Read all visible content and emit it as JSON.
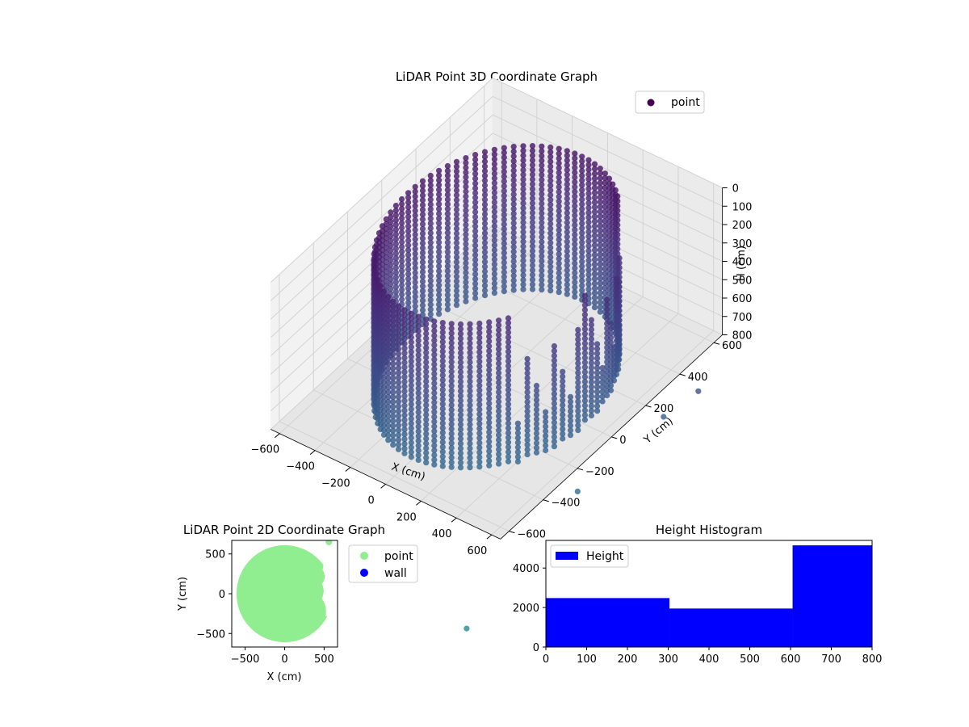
{
  "chart_data": [
    {
      "type": "scatter3d",
      "title": "LiDAR Point 3D Coordinate Graph",
      "xlabel": "X (cm)",
      "ylabel": "Y (cm)",
      "zlabel": "H (cm)",
      "xlim": [
        -650,
        650
      ],
      "ylim": [
        -650,
        650
      ],
      "zlim": [
        800,
        0
      ],
      "xticks": [
        -600,
        -400,
        -200,
        0,
        200,
        400,
        600
      ],
      "yticks": [
        -600,
        -400,
        -200,
        0,
        200,
        400,
        600
      ],
      "zticks": [
        0,
        100,
        200,
        300,
        400,
        500,
        600,
        700,
        800
      ],
      "colormap": "viridis",
      "legend": {
        "position": "top-right",
        "entries": [
          {
            "label": "point",
            "color": "#440154"
          }
        ]
      },
      "grid": true,
      "series": [
        {
          "name": "point",
          "shape": "cylindrical wall of points",
          "radius": 500,
          "height_range": [
            0,
            800
          ],
          "opening_angle_range_deg": [
            -40,
            50
          ],
          "outliers": [
            {
              "x": 900,
              "y": 250,
              "h": 650
            },
            {
              "x": 800,
              "y": 150,
              "h": 750
            },
            {
              "x": 700,
              "y": -250,
              "h": 860
            },
            {
              "x": 700,
              "y": -900,
              "h": 1050
            }
          ]
        }
      ]
    },
    {
      "type": "scatter",
      "title": "LiDAR Point 2D Coordinate Graph",
      "xlabel": "X (cm)",
      "ylabel": "Y (cm)",
      "xlim": [
        -670,
        670
      ],
      "ylim": [
        -670,
        670
      ],
      "xticks": [
        -500,
        0,
        500
      ],
      "yticks": [
        -500,
        0,
        500
      ],
      "legend": {
        "position": "outside-right",
        "entries": [
          {
            "label": "point",
            "color": "#90ee90"
          },
          {
            "label": "wall",
            "color": "#0000ff"
          }
        ]
      },
      "series": [
        {
          "name": "point",
          "color": "#90ee90",
          "shape": "filled disk",
          "radius": 610
        },
        {
          "name": "wall",
          "color": "#0000ff",
          "values": []
        }
      ]
    },
    {
      "type": "bar",
      "title": "Height Histogram",
      "xlim": [
        0,
        800
      ],
      "ylim": [
        0,
        5400
      ],
      "xticks": [
        0,
        100,
        200,
        300,
        400,
        500,
        600,
        700,
        800
      ],
      "yticks": [
        0,
        2000,
        4000
      ],
      "legend": {
        "position": "top-left",
        "entries": [
          {
            "label": "Height",
            "color": "#0000ff"
          }
        ]
      },
      "bins": [
        {
          "start": 0,
          "end": 303,
          "count": 2480
        },
        {
          "start": 303,
          "end": 605,
          "count": 1950
        },
        {
          "start": 605,
          "end": 800,
          "count": 5150
        }
      ],
      "series": [
        {
          "name": "Height",
          "color": "#0000ff"
        }
      ]
    }
  ]
}
